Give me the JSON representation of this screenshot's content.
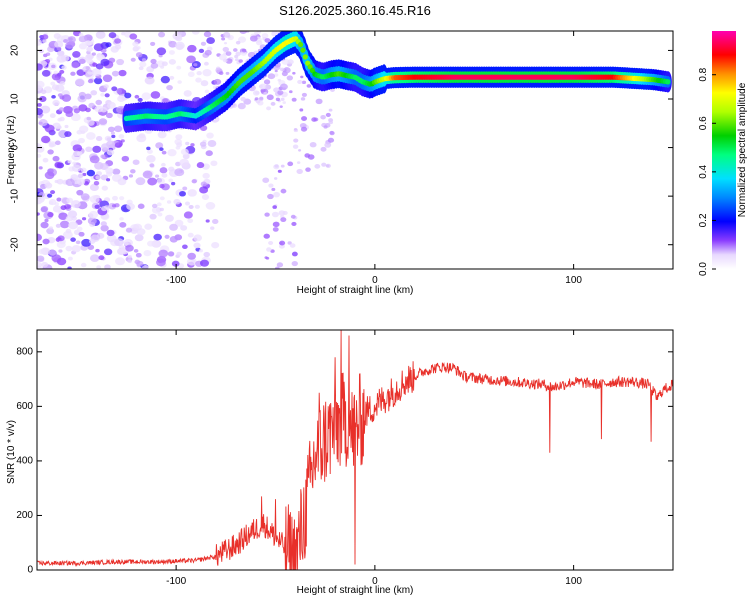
{
  "title": "S126.2025.360.16.45.R16",
  "colors": {
    "snr_line": "#e8302a",
    "background": "#ffffff",
    "frame": "#000000"
  },
  "chart_data": [
    {
      "type": "heatmap",
      "xlabel": "Height of straight line (km)",
      "ylabel": "Frequency (Hz)",
      "xlim": [
        -170,
        150
      ],
      "ylim": [
        -25,
        24
      ],
      "x_ticks": [
        -100,
        0,
        100
      ],
      "x_tick_labels": [
        "-100",
        "0",
        "100"
      ],
      "y_ticks": [
        -20,
        -10,
        0,
        10,
        20
      ],
      "y_tick_labels": [
        "-20",
        "-10",
        "0",
        "10",
        "20"
      ],
      "colorbar": {
        "label": "Normalized spectral amplitude",
        "range": [
          0,
          0.98
        ],
        "ticks": [
          0.0,
          0.2,
          0.4,
          0.6,
          0.8
        ],
        "tick_labels": [
          "0.0",
          "0.2",
          "0.4",
          "0.6",
          "0.8"
        ],
        "colormap": "gist_ncar-like (white, violet, blue, cyan, green, yellow, orange, red, magenta)"
      },
      "ridge": {
        "x": [
          -125,
          -115,
          -105,
          -98,
          -90,
          -82,
          -75,
          -68,
          -62,
          -56,
          -50,
          -45,
          -40,
          -37,
          -34,
          -30,
          -26,
          -22,
          -18,
          -14,
          -10,
          -6,
          -2,
          0,
          5,
          10,
          20,
          40,
          60,
          80,
          100,
          120,
          140,
          148
        ],
        "frequency": [
          6,
          6.5,
          6.3,
          7,
          6.5,
          8.5,
          10.5,
          13.5,
          15.5,
          17.5,
          20,
          21.5,
          22.5,
          21,
          17.5,
          15,
          14.5,
          15,
          15.2,
          14.8,
          14.5,
          13.5,
          13,
          13.5,
          14.2,
          14.4,
          14.5,
          14.5,
          14.5,
          14.5,
          14.5,
          14.5,
          14,
          13.5
        ],
        "amplitude": [
          0.45,
          0.5,
          0.45,
          0.5,
          0.4,
          0.5,
          0.55,
          0.6,
          0.6,
          0.65,
          0.7,
          0.75,
          0.7,
          0.6,
          0.65,
          0.55,
          0.5,
          0.55,
          0.6,
          0.55,
          0.5,
          0.5,
          0.55,
          0.6,
          0.7,
          0.85,
          0.9,
          0.95,
          0.95,
          0.95,
          0.95,
          0.9,
          0.6,
          0.5
        ]
      }
    },
    {
      "type": "line",
      "xlabel": "Height of straight line (km)",
      "ylabel": "SNR (10 * v/v)",
      "xlim": [
        -170,
        150
      ],
      "ylim": [
        0,
        880
      ],
      "x_ticks": [
        -100,
        0,
        100
      ],
      "x_tick_labels": [
        "-100",
        "0",
        "100"
      ],
      "y_ticks": [
        0,
        200,
        400,
        600,
        800
      ],
      "y_tick_labels": [
        "0",
        "200",
        "400",
        "600",
        "800"
      ],
      "series": [
        {
          "x": [
            -170,
            -150,
            -130,
            -110,
            -90,
            -80,
            -70,
            -62,
            -56,
            -50,
            -45,
            -40,
            -35,
            -30,
            -25,
            -20,
            -15,
            -12,
            -8,
            -4,
            0,
            5,
            10,
            15,
            20,
            25,
            30,
            35,
            40,
            45,
            55,
            70,
            85,
            90,
            100,
            113,
            120,
            130,
            138,
            142,
            145,
            150
          ],
          "y": [
            25,
            25,
            30,
            30,
            35,
            50,
            90,
            140,
            170,
            120,
            80,
            40,
            210,
            420,
            480,
            520,
            560,
            500,
            540,
            580,
            600,
            630,
            660,
            690,
            710,
            730,
            740,
            745,
            740,
            710,
            700,
            690,
            680,
            670,
            690,
            680,
            690,
            690,
            680,
            630,
            660,
            680
          ],
          "spikes": [
            {
              "x": -57,
              "y": 270
            },
            {
              "x": -50,
              "y": 260
            },
            {
              "x": -28,
              "y": 650
            },
            {
              "x": -20,
              "y": 780
            },
            {
              "x": -17,
              "y": 880
            },
            {
              "x": -13,
              "y": 860
            },
            {
              "x": -10,
              "y": 20
            },
            {
              "x": 88,
              "y": 430
            },
            {
              "x": 114,
              "y": 480
            },
            {
              "x": 139,
              "y": 470
            }
          ]
        }
      ]
    }
  ]
}
